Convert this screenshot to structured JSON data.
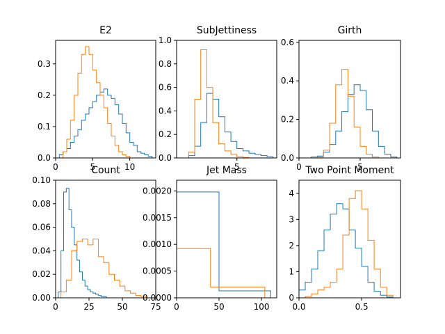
{
  "colors": {
    "series_0": "#1f77b4",
    "series_1": "#ff7f0e"
  },
  "chart_data": [
    {
      "type": "histogram",
      "title": "E2",
      "xlim": [
        0,
        13.5
      ],
      "ylim": [
        0,
        0.375
      ],
      "xticks": [
        0,
        5,
        10
      ],
      "xtick_labels": [
        "0",
        "5",
        "10"
      ],
      "yticks": [
        0,
        0.1,
        0.2,
        0.3
      ],
      "ytick_labels": [
        "0.0",
        "0.1",
        "0.2",
        "0.3"
      ],
      "series": [
        {
          "color": "#1f77b4",
          "step": true,
          "x": [
            0,
            0.5,
            1,
            1.5,
            2,
            2.5,
            3,
            3.5,
            4,
            4.5,
            5,
            5.5,
            6,
            6.5,
            7,
            7.5,
            8,
            8.5,
            9,
            9.5,
            10,
            10.5,
            11,
            11.5,
            12,
            12.5,
            13
          ],
          "y": [
            0,
            0.01,
            0.02,
            0.03,
            0.05,
            0.07,
            0.09,
            0.12,
            0.14,
            0.16,
            0.18,
            0.2,
            0.21,
            0.22,
            0.2,
            0.19,
            0.17,
            0.14,
            0.11,
            0.08,
            0.05,
            0.04,
            0.02,
            0.015,
            0.01,
            0.005,
            0
          ]
        },
        {
          "color": "#ff7f0e",
          "step": true,
          "x": [
            0,
            0.5,
            1,
            1.5,
            2,
            2.5,
            3,
            3.5,
            4,
            4.5,
            5,
            5.5,
            6,
            6.5,
            7,
            7.5,
            8,
            8.5,
            9,
            9.5,
            10,
            10.5,
            11,
            11.5,
            12,
            12.5,
            13
          ],
          "y": [
            0,
            0,
            0.02,
            0.06,
            0.12,
            0.2,
            0.27,
            0.33,
            0.355,
            0.33,
            0.28,
            0.24,
            0.2,
            0.16,
            0.11,
            0.07,
            0.04,
            0.02,
            0.01,
            0.005,
            0,
            0,
            0,
            0,
            0,
            0,
            0
          ]
        }
      ]
    },
    {
      "type": "histogram",
      "title": "SubJettiness",
      "xlim": [
        0,
        8.3
      ],
      "ylim": [
        0,
        1.0
      ],
      "xticks": [
        5
      ],
      "xtick_labels": [
        "5"
      ],
      "yticks": [
        0,
        0.2,
        0.4,
        0.6,
        0.8,
        1.0
      ],
      "ytick_labels": [
        "0.0",
        "0.2",
        "0.4",
        "0.6",
        "0.8",
        "1.0"
      ],
      "series": [
        {
          "color": "#1f77b4",
          "step": true,
          "x": [
            0,
            0.5,
            1,
            1.5,
            2,
            2.5,
            3,
            3.5,
            4,
            4.5,
            5,
            5.5,
            6,
            6.5,
            7,
            7.5,
            8
          ],
          "y": [
            0,
            0,
            0.02,
            0.1,
            0.3,
            0.55,
            0.5,
            0.35,
            0.22,
            0.14,
            0.08,
            0.06,
            0.04,
            0.03,
            0.02,
            0.01,
            0
          ]
        },
        {
          "color": "#ff7f0e",
          "step": true,
          "x": [
            0,
            0.5,
            1,
            1.5,
            2,
            2.5,
            3,
            3.5,
            4,
            4.5,
            5,
            5.5,
            6,
            6.5,
            7,
            7.5,
            8
          ],
          "y": [
            0,
            0,
            0.05,
            0.5,
            0.92,
            0.6,
            0.3,
            0.12,
            0.06,
            0.03,
            0.01,
            0.005,
            0,
            0,
            0,
            0,
            0
          ]
        }
      ]
    },
    {
      "type": "histogram",
      "title": "Girth",
      "xlim": [
        0,
        8.3
      ],
      "ylim": [
        0,
        0.61
      ],
      "xticks": [
        0,
        5
      ],
      "xtick_labels": [
        "0",
        "5"
      ],
      "yticks": [
        0,
        0.2,
        0.4,
        0.6
      ],
      "ytick_labels": [
        "0.0",
        "0.2",
        "0.4",
        "0.6"
      ],
      "series": [
        {
          "color": "#1f77b4",
          "step": true,
          "x": [
            0,
            0.5,
            1,
            1.5,
            2,
            2.5,
            3,
            3.5,
            4,
            4.5,
            5,
            5.5,
            6,
            6.5,
            7,
            7.5,
            8
          ],
          "y": [
            0,
            0,
            0.005,
            0.01,
            0.03,
            0.07,
            0.14,
            0.24,
            0.33,
            0.38,
            0.35,
            0.25,
            0.14,
            0.06,
            0.02,
            0.005,
            0
          ]
        },
        {
          "color": "#ff7f0e",
          "step": true,
          "x": [
            0,
            0.5,
            1,
            1.5,
            2,
            2.5,
            3,
            3.5,
            4,
            4.5,
            5,
            5.5,
            6,
            6.5,
            7,
            7.5,
            8
          ],
          "y": [
            0,
            0,
            0,
            0.005,
            0.04,
            0.18,
            0.38,
            0.46,
            0.32,
            0.16,
            0.06,
            0.02,
            0.005,
            0,
            0,
            0,
            0
          ]
        }
      ]
    },
    {
      "type": "histogram",
      "title": "Count",
      "xlim": [
        0,
        75
      ],
      "ylim": [
        0,
        0.1
      ],
      "xticks": [
        0,
        25,
        50,
        75
      ],
      "xtick_labels": [
        "0",
        "25",
        "50",
        "75"
      ],
      "yticks": [
        0,
        0.02,
        0.04,
        0.06,
        0.08,
        0.1
      ],
      "ytick_labels": [
        "0.00",
        "0.02",
        "0.04",
        "0.06",
        "0.08",
        "0.10"
      ],
      "series": [
        {
          "color": "#1f77b4",
          "step": true,
          "x": [
            0,
            2,
            4,
            6,
            8,
            10,
            12,
            14,
            16,
            18,
            20,
            22,
            24,
            26,
            28,
            30,
            32,
            34,
            36,
            38,
            40,
            42
          ],
          "y": [
            0,
            0.005,
            0.04,
            0.09,
            0.093,
            0.075,
            0.06,
            0.045,
            0.032,
            0.022,
            0.015,
            0.01,
            0.007,
            0.005,
            0.004,
            0.003,
            0.002,
            0.001,
            0.001,
            0,
            0,
            0
          ]
        },
        {
          "color": "#ff7f0e",
          "step": true,
          "x": [
            0,
            4,
            8,
            12,
            16,
            20,
            24,
            28,
            32,
            36,
            40,
            44,
            48,
            52,
            56,
            60,
            64,
            68,
            72
          ],
          "y": [
            0,
            0.005,
            0.015,
            0.04,
            0.048,
            0.05,
            0.045,
            0.05,
            0.035,
            0.03,
            0.02,
            0.015,
            0.01,
            0.006,
            0.004,
            0.002,
            0.001,
            0,
            0
          ]
        }
      ]
    },
    {
      "type": "histogram",
      "title": "Jet Mass",
      "xlim": [
        0,
        118
      ],
      "ylim": [
        0,
        0.0022
      ],
      "xticks": [
        0,
        50,
        100
      ],
      "xtick_labels": [
        "0",
        "50",
        "100"
      ],
      "yticks": [
        0,
        0.0005,
        0.001,
        0.0015,
        0.002
      ],
      "ytick_labels": [
        "0.0000",
        "0.0005",
        "0.0010",
        "0.0015",
        "0.0020"
      ],
      "series": [
        {
          "color": "#1f77b4",
          "step": true,
          "x": [
            0,
            50,
            111
          ],
          "y": [
            0.00198,
            0.00013,
            0
          ]
        },
        {
          "color": "#ff7f0e",
          "step": true,
          "x": [
            0,
            40,
            104
          ],
          "y": [
            0.00092,
            0.0002,
            0
          ]
        }
      ]
    },
    {
      "type": "histogram",
      "title": "Two Point Moment",
      "xlim": [
        0,
        0.81
      ],
      "ylim": [
        0,
        4.5
      ],
      "xticks": [
        0,
        0.5
      ],
      "xtick_labels": [
        "0.0",
        "0.5"
      ],
      "yticks": [
        0,
        1,
        2,
        3,
        4
      ],
      "ytick_labels": [
        "0",
        "1",
        "2",
        "3",
        "4"
      ],
      "series": [
        {
          "color": "#1f77b4",
          "step": true,
          "x": [
            0,
            0.05,
            0.1,
            0.15,
            0.2,
            0.25,
            0.3,
            0.35,
            0.4,
            0.45,
            0.5,
            0.55,
            0.6,
            0.65,
            0.7,
            0.75
          ],
          "y": [
            0.3,
            0.6,
            1.1,
            1.8,
            2.6,
            3.2,
            3.6,
            3.4,
            2.6,
            1.9,
            1.2,
            0.6,
            0.25,
            0.1,
            0.03,
            0
          ]
        },
        {
          "color": "#ff7f0e",
          "step": true,
          "x": [
            0,
            0.05,
            0.1,
            0.15,
            0.2,
            0.25,
            0.3,
            0.35,
            0.4,
            0.45,
            0.5,
            0.55,
            0.6,
            0.65,
            0.7,
            0.75
          ],
          "y": [
            0,
            0.05,
            0.15,
            0.3,
            0.4,
            0.6,
            1.1,
            2.4,
            3.8,
            4.1,
            3.4,
            2.2,
            1.1,
            0.4,
            0.1,
            0
          ]
        }
      ]
    }
  ]
}
